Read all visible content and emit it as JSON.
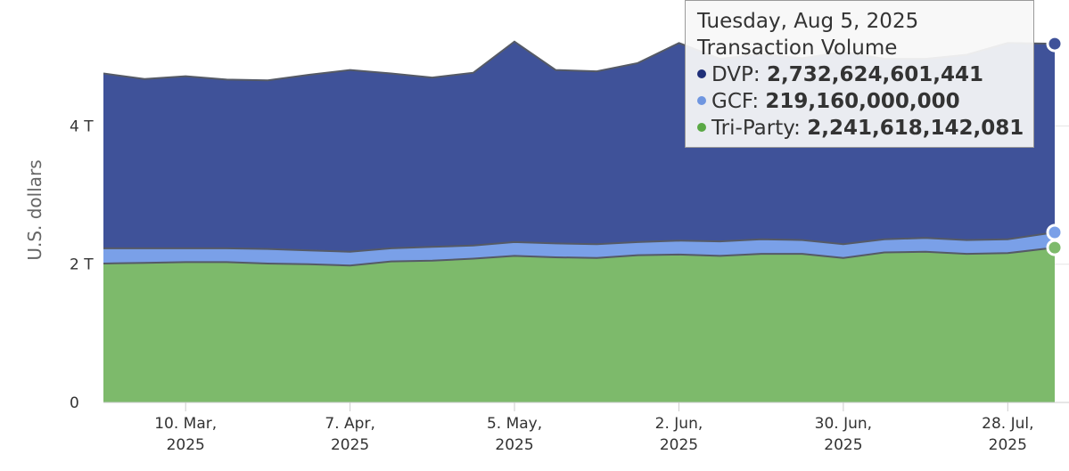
{
  "chart_data": {
    "type": "area",
    "stacked": true,
    "ylabel": "U.S. dollars",
    "ylim": [
      0,
      5.5
    ],
    "y_ticks": [
      {
        "value": 0,
        "label": "0"
      },
      {
        "value": 2,
        "label": "2 T"
      },
      {
        "value": 4,
        "label": "4 T"
      }
    ],
    "x_ticks": [
      {
        "date": "2025-03-10",
        "line1": "10. Mar,",
        "line2": "2025"
      },
      {
        "date": "2025-04-07",
        "line1": "7. Apr,",
        "line2": "2025"
      },
      {
        "date": "2025-05-05",
        "line1": "5. May,",
        "line2": "2025"
      },
      {
        "date": "2025-06-02",
        "line1": "2. Jun,",
        "line2": "2025"
      },
      {
        "date": "2025-06-30",
        "line1": "30. Jun,",
        "line2": "2025"
      },
      {
        "date": "2025-07-28",
        "line1": "28. Jul,",
        "line2": "2025"
      }
    ],
    "x_range": [
      "2025-02-24",
      "2025-08-05"
    ],
    "grid": true,
    "colors": {
      "DVP": "#3f5299",
      "GCF": "#7aa0e8",
      "Tri-Party": "#7dba6b",
      "outline": "#555a66"
    },
    "x": [
      "2025-02-24",
      "2025-03-03",
      "2025-03-10",
      "2025-03-17",
      "2025-03-24",
      "2025-03-31",
      "2025-04-07",
      "2025-04-14",
      "2025-04-21",
      "2025-04-28",
      "2025-05-05",
      "2025-05-12",
      "2025-05-19",
      "2025-05-26",
      "2025-06-02",
      "2025-06-09",
      "2025-06-16",
      "2025-06-23",
      "2025-06-30",
      "2025-07-07",
      "2025-07-14",
      "2025-07-21",
      "2025-07-28",
      "2025-08-05"
    ],
    "series": [
      {
        "name": "Tri-Party",
        "values": [
          2.01,
          2.02,
          2.03,
          2.03,
          2.01,
          2.0,
          1.98,
          2.04,
          2.05,
          2.08,
          2.12,
          2.1,
          2.09,
          2.13,
          2.14,
          2.12,
          2.15,
          2.15,
          2.09,
          2.17,
          2.18,
          2.15,
          2.16,
          2.24
        ]
      },
      {
        "name": "GCF",
        "values": [
          0.22,
          0.21,
          0.2,
          0.2,
          0.21,
          0.2,
          0.2,
          0.19,
          0.2,
          0.19,
          0.2,
          0.2,
          0.2,
          0.19,
          0.2,
          0.21,
          0.21,
          0.2,
          0.2,
          0.19,
          0.2,
          0.2,
          0.2,
          0.22
        ]
      },
      {
        "name": "DVP",
        "values": [
          2.53,
          2.45,
          2.49,
          2.44,
          2.44,
          2.54,
          2.63,
          2.53,
          2.45,
          2.5,
          2.9,
          2.51,
          2.5,
          2.59,
          2.86,
          2.64,
          2.68,
          2.63,
          2.78,
          2.61,
          2.59,
          2.68,
          2.84,
          2.73
        ]
      }
    ]
  },
  "tooltip": {
    "date": "Tuesday, Aug 5, 2025",
    "title": "Transaction Volume",
    "rows": [
      {
        "name": "DVP",
        "value": "2,732,624,601,441",
        "color": "#1f2f78"
      },
      {
        "name": "GCF",
        "value": "219,160,000,000",
        "color": "#6f96e0"
      },
      {
        "name": "Tri-Party",
        "value": "2,241,618,142,081",
        "color": "#5aa845"
      }
    ]
  }
}
